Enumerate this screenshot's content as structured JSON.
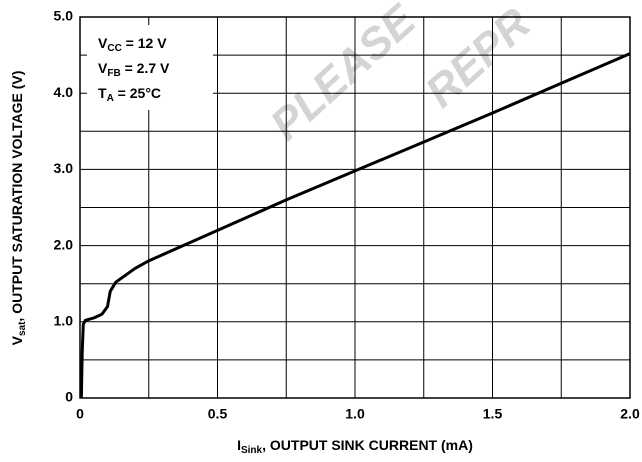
{
  "chart_data": {
    "type": "line",
    "xlabel": {
      "symbol": "I",
      "sub": "Sink",
      "text": ", OUTPUT SINK CURRENT (mA)"
    },
    "ylabel": {
      "symbol": "V",
      "sub": "sat",
      "text": ", OUTPUT SATURATION VOLTAGE (V)"
    },
    "annotations": [
      {
        "symbol": "V",
        "sub": "CC",
        "text": " = 12 V"
      },
      {
        "symbol": "V",
        "sub": "FB",
        "text": " = 2.7 V"
      },
      {
        "symbol": "T",
        "sub": "A",
        "text": " = 25°C"
      }
    ],
    "watermark": [
      "PLEASE",
      "REPR"
    ],
    "xlim": [
      0,
      2.0
    ],
    "ylim": [
      0,
      5.0
    ],
    "xticks": [
      0,
      0.5,
      {
        "value": 1.0,
        "label": "1.0"
      },
      1.5,
      {
        "value": 2.0,
        "label": "2.0"
      }
    ],
    "yticks": [
      0,
      {
        "value": 1.0,
        "label": "1.0"
      },
      {
        "value": 2.0,
        "label": "2.0"
      },
      {
        "value": 3.0,
        "label": "3.0"
      },
      {
        "value": 4.0,
        "label": "4.0"
      },
      {
        "value": 5.0,
        "label": "5.0"
      }
    ],
    "xminorticks": [
      0.25,
      0.75,
      1.25,
      1.75
    ],
    "yminorticks": [
      0.5,
      1.5,
      2.5,
      3.5,
      4.5
    ],
    "grid": true,
    "series": [
      {
        "color": "#000000",
        "x": [
          0.005,
          0.008,
          0.012,
          0.02,
          0.05,
          0.08,
          0.1,
          0.11,
          0.13,
          0.2,
          0.25,
          0.5,
          0.75,
          1.0,
          1.25,
          1.5,
          1.75,
          2.0
        ],
        "values": [
          0,
          0.6,
          0.97,
          1.02,
          1.05,
          1.1,
          1.2,
          1.4,
          1.52,
          1.7,
          1.8,
          2.2,
          2.6,
          2.98,
          3.36,
          3.74,
          4.13,
          4.52
        ]
      }
    ]
  }
}
